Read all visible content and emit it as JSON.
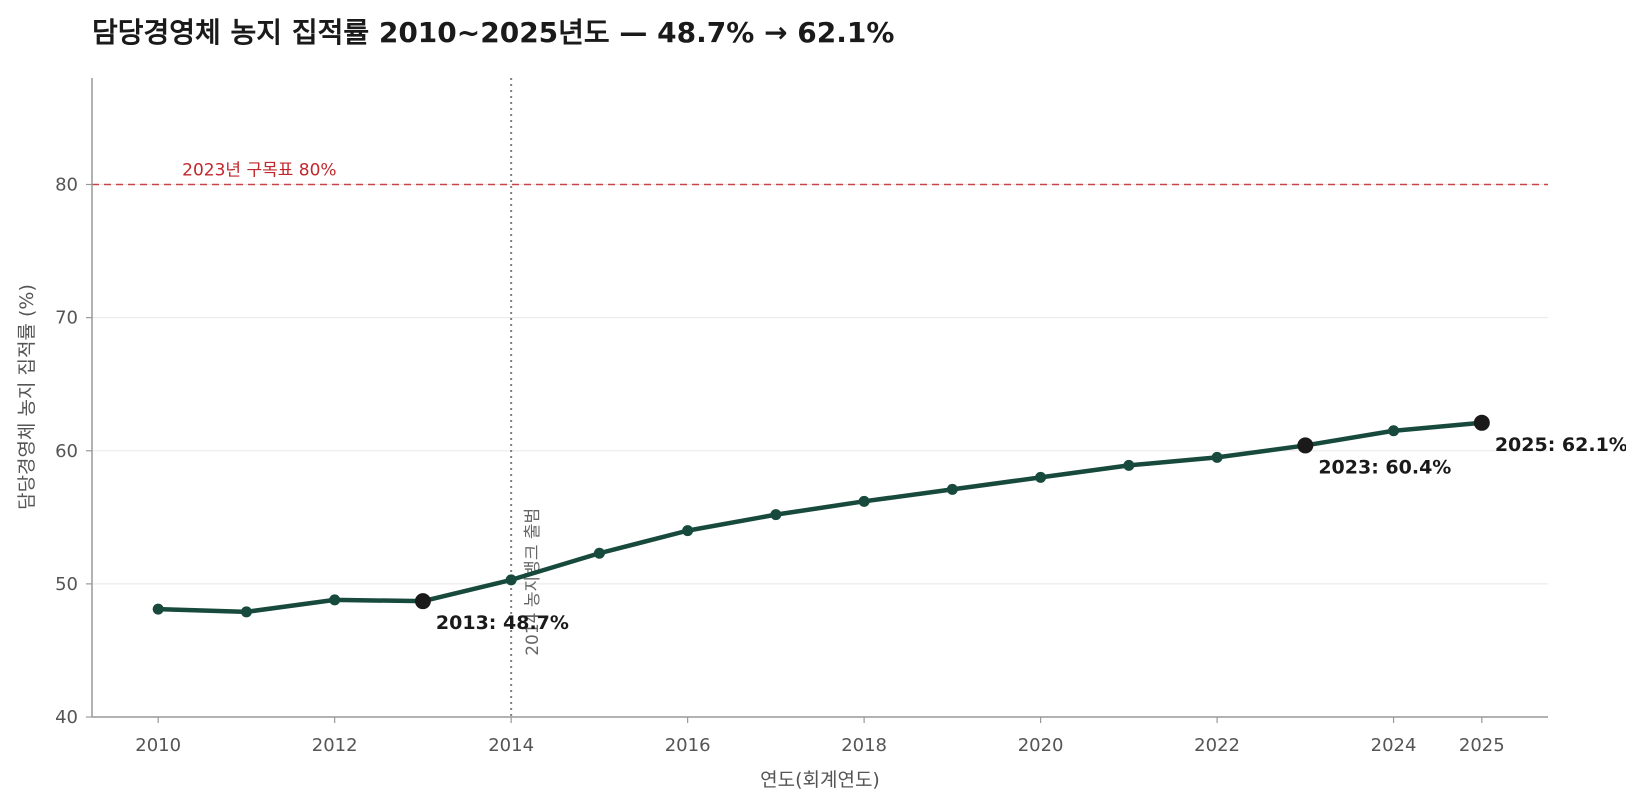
{
  "chart_data": {
    "type": "line",
    "title": "담당경영체 농지 집적률 2010~2025년도 — 48.7% → 62.1%",
    "xlabel": "연도(회계연도)",
    "ylabel": "담당경영체 농지 집적률 (%)",
    "x": [
      2010,
      2011,
      2012,
      2013,
      2014,
      2015,
      2016,
      2017,
      2018,
      2019,
      2020,
      2021,
      2022,
      2023,
      2024,
      2025
    ],
    "series": [
      {
        "values": [
          48.1,
          47.9,
          48.8,
          48.7,
          50.3,
          52.3,
          54.0,
          55.2,
          56.2,
          57.1,
          58.0,
          58.9,
          59.5,
          60.4,
          61.5,
          62.1
        ]
      }
    ],
    "ylim": [
      40,
      88
    ],
    "xlim": [
      2009.25,
      2025.75
    ],
    "y_ticks": [
      40,
      50,
      60,
      70,
      80
    ],
    "x_ticks": [
      2010,
      2012,
      2014,
      2016,
      2018,
      2020,
      2022,
      2024,
      2025
    ],
    "grid": "horizontal",
    "target_line": {
      "y": 80,
      "label": "2023년 구목표 80%"
    },
    "event_line": {
      "x": 2014,
      "label": "2014 농지뱅크 출범"
    },
    "highlights": [
      {
        "x": 2013,
        "y": 48.7,
        "label": "2013: 48.7%"
      },
      {
        "x": 2023,
        "y": 60.4,
        "label": "2023: 60.4%"
      },
      {
        "x": 2025,
        "y": 62.1,
        "label": "2025: 62.1%"
      }
    ],
    "colors": {
      "line": "#174a3c",
      "highlight": "#1a1a1a",
      "target": "#c0282d",
      "event": "#808080",
      "grid": "#e8e8e8",
      "axis": "#999999"
    }
  }
}
